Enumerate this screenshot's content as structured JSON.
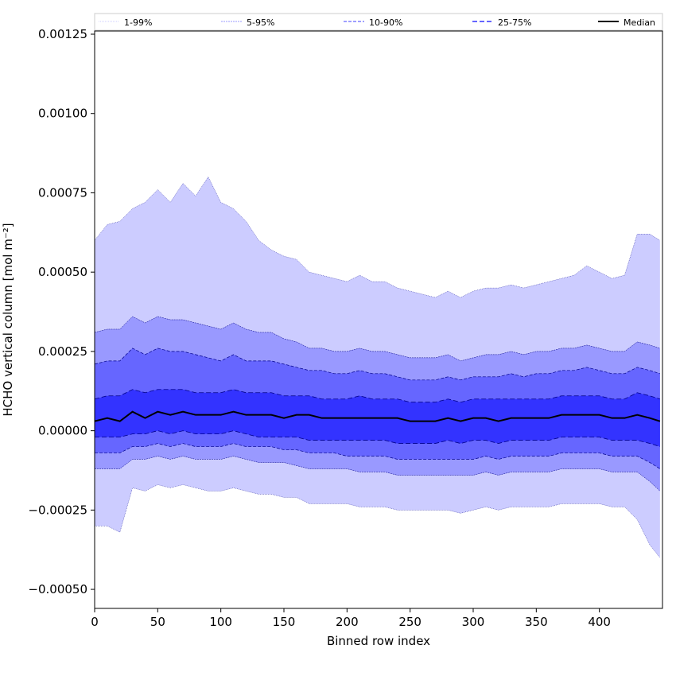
{
  "chart_data": {
    "type": "area",
    "title": "",
    "xlabel": "Binned row index",
    "ylabel": "HCHO vertical column [mol m⁻²]",
    "xlim": [
      0,
      450
    ],
    "ylim": [
      -0.00056,
      0.00126
    ],
    "x_ticks": [
      0,
      50,
      100,
      150,
      200,
      250,
      300,
      350,
      400
    ],
    "x_tick_labels": [
      "0",
      "50",
      "100",
      "150",
      "200",
      "250",
      "300",
      "350",
      "400"
    ],
    "y_ticks": [
      -0.0005,
      -0.00025,
      0,
      0.00025,
      0.0005,
      0.00075,
      0.001,
      0.00125
    ],
    "y_tick_labels": [
      "−0.00050",
      "−0.00025",
      "0.00000",
      "0.00025",
      "0.00050",
      "0.00075",
      "0.00100",
      "0.00125"
    ],
    "grid": false,
    "legend_position": "top",
    "legend": [
      "1-99%",
      "5-95%",
      "10-90%",
      "25-75%",
      "Median"
    ],
    "colors": {
      "band_1_99": "#ccccff",
      "band_5_95": "#9999ff",
      "band_10_90": "#6666ff",
      "band_25_75": "#3333ff",
      "edge": "#00008b",
      "median": "#000000"
    },
    "x": [
      0,
      10,
      20,
      30,
      40,
      50,
      60,
      70,
      80,
      90,
      100,
      110,
      120,
      130,
      140,
      150,
      160,
      170,
      180,
      190,
      200,
      210,
      220,
      230,
      240,
      250,
      260,
      270,
      280,
      290,
      300,
      310,
      320,
      330,
      340,
      350,
      360,
      370,
      380,
      390,
      400,
      410,
      420,
      430,
      440,
      448
    ],
    "series": [
      {
        "name": "Median",
        "values": [
          3e-05,
          4e-05,
          3e-05,
          6e-05,
          4e-05,
          6e-05,
          5e-05,
          6e-05,
          5e-05,
          5e-05,
          5e-05,
          6e-05,
          5e-05,
          5e-05,
          5e-05,
          4e-05,
          5e-05,
          5e-05,
          4e-05,
          4e-05,
          4e-05,
          4e-05,
          4e-05,
          4e-05,
          4e-05,
          3e-05,
          3e-05,
          3e-05,
          4e-05,
          3e-05,
          4e-05,
          4e-05,
          3e-05,
          4e-05,
          4e-05,
          4e-05,
          4e-05,
          5e-05,
          5e-05,
          5e-05,
          5e-05,
          4e-05,
          4e-05,
          5e-05,
          4e-05,
          3e-05
        ]
      },
      {
        "name": "25-75%",
        "values": [
          [
            -2e-05,
            0.0001
          ],
          [
            -2e-05,
            0.00011
          ],
          [
            -2e-05,
            0.00011
          ],
          [
            -1e-05,
            0.00013
          ],
          [
            -1e-05,
            0.00012
          ],
          [
            0.0,
            0.00013
          ],
          [
            -1e-05,
            0.00013
          ],
          [
            0.0,
            0.00013
          ],
          [
            -1e-05,
            0.00012
          ],
          [
            -1e-05,
            0.00012
          ],
          [
            -1e-05,
            0.00012
          ],
          [
            0.0,
            0.00013
          ],
          [
            -1e-05,
            0.00012
          ],
          [
            -2e-05,
            0.00012
          ],
          [
            -2e-05,
            0.00012
          ],
          [
            -2e-05,
            0.00011
          ],
          [
            -2e-05,
            0.00011
          ],
          [
            -3e-05,
            0.00011
          ],
          [
            -3e-05,
            0.0001
          ],
          [
            -3e-05,
            0.0001
          ],
          [
            -3e-05,
            0.0001
          ],
          [
            -3e-05,
            0.00011
          ],
          [
            -3e-05,
            0.0001
          ],
          [
            -3e-05,
            0.0001
          ],
          [
            -4e-05,
            0.0001
          ],
          [
            -4e-05,
            9e-05
          ],
          [
            -4e-05,
            9e-05
          ],
          [
            -4e-05,
            9e-05
          ],
          [
            -3e-05,
            0.0001
          ],
          [
            -4e-05,
            9e-05
          ],
          [
            -3e-05,
            0.0001
          ],
          [
            -3e-05,
            0.0001
          ],
          [
            -4e-05,
            0.0001
          ],
          [
            -3e-05,
            0.0001
          ],
          [
            -3e-05,
            0.0001
          ],
          [
            -3e-05,
            0.0001
          ],
          [
            -3e-05,
            0.0001
          ],
          [
            -2e-05,
            0.00011
          ],
          [
            -2e-05,
            0.00011
          ],
          [
            -2e-05,
            0.00011
          ],
          [
            -2e-05,
            0.00011
          ],
          [
            -3e-05,
            0.0001
          ],
          [
            -3e-05,
            0.0001
          ],
          [
            -3e-05,
            0.00012
          ],
          [
            -4e-05,
            0.00011
          ],
          [
            -5e-05,
            0.0001
          ]
        ]
      },
      {
        "name": "10-90%",
        "values": [
          [
            -7e-05,
            0.00021
          ],
          [
            -7e-05,
            0.00022
          ],
          [
            -7e-05,
            0.00022
          ],
          [
            -5e-05,
            0.00026
          ],
          [
            -5e-05,
            0.00024
          ],
          [
            -4e-05,
            0.00026
          ],
          [
            -5e-05,
            0.00025
          ],
          [
            -4e-05,
            0.00025
          ],
          [
            -5e-05,
            0.00024
          ],
          [
            -5e-05,
            0.00023
          ],
          [
            -5e-05,
            0.00022
          ],
          [
            -4e-05,
            0.00024
          ],
          [
            -5e-05,
            0.00022
          ],
          [
            -5e-05,
            0.00022
          ],
          [
            -5e-05,
            0.00022
          ],
          [
            -6e-05,
            0.00021
          ],
          [
            -6e-05,
            0.0002
          ],
          [
            -7e-05,
            0.00019
          ],
          [
            -7e-05,
            0.00019
          ],
          [
            -7e-05,
            0.00018
          ],
          [
            -8e-05,
            0.00018
          ],
          [
            -8e-05,
            0.00019
          ],
          [
            -8e-05,
            0.00018
          ],
          [
            -8e-05,
            0.00018
          ],
          [
            -9e-05,
            0.00017
          ],
          [
            -9e-05,
            0.00016
          ],
          [
            -9e-05,
            0.00016
          ],
          [
            -9e-05,
            0.00016
          ],
          [
            -9e-05,
            0.00017
          ],
          [
            -9e-05,
            0.00016
          ],
          [
            -9e-05,
            0.00017
          ],
          [
            -8e-05,
            0.00017
          ],
          [
            -9e-05,
            0.00017
          ],
          [
            -8e-05,
            0.00018
          ],
          [
            -8e-05,
            0.00017
          ],
          [
            -8e-05,
            0.00018
          ],
          [
            -8e-05,
            0.00018
          ],
          [
            -7e-05,
            0.00019
          ],
          [
            -7e-05,
            0.00019
          ],
          [
            -7e-05,
            0.0002
          ],
          [
            -7e-05,
            0.00019
          ],
          [
            -8e-05,
            0.00018
          ],
          [
            -8e-05,
            0.00018
          ],
          [
            -8e-05,
            0.0002
          ],
          [
            -0.0001,
            0.00019
          ],
          [
            -0.00012,
            0.00018
          ]
        ]
      },
      {
        "name": "5-95%",
        "values": [
          [
            -0.00012,
            0.00031
          ],
          [
            -0.00012,
            0.00032
          ],
          [
            -0.00012,
            0.00032
          ],
          [
            -9e-05,
            0.00036
          ],
          [
            -9e-05,
            0.00034
          ],
          [
            -8e-05,
            0.00036
          ],
          [
            -9e-05,
            0.00035
          ],
          [
            -8e-05,
            0.00035
          ],
          [
            -9e-05,
            0.00034
          ],
          [
            -9e-05,
            0.00033
          ],
          [
            -9e-05,
            0.00032
          ],
          [
            -8e-05,
            0.00034
          ],
          [
            -9e-05,
            0.00032
          ],
          [
            -0.0001,
            0.00031
          ],
          [
            -0.0001,
            0.00031
          ],
          [
            -0.0001,
            0.00029
          ],
          [
            -0.00011,
            0.00028
          ],
          [
            -0.00012,
            0.00026
          ],
          [
            -0.00012,
            0.00026
          ],
          [
            -0.00012,
            0.00025
          ],
          [
            -0.00012,
            0.00025
          ],
          [
            -0.00013,
            0.00026
          ],
          [
            -0.00013,
            0.00025
          ],
          [
            -0.00013,
            0.00025
          ],
          [
            -0.00014,
            0.00024
          ],
          [
            -0.00014,
            0.00023
          ],
          [
            -0.00014,
            0.00023
          ],
          [
            -0.00014,
            0.00023
          ],
          [
            -0.00014,
            0.00024
          ],
          [
            -0.00014,
            0.00022
          ],
          [
            -0.00014,
            0.00023
          ],
          [
            -0.00013,
            0.00024
          ],
          [
            -0.00014,
            0.00024
          ],
          [
            -0.00013,
            0.00025
          ],
          [
            -0.00013,
            0.00024
          ],
          [
            -0.00013,
            0.00025
          ],
          [
            -0.00013,
            0.00025
          ],
          [
            -0.00012,
            0.00026
          ],
          [
            -0.00012,
            0.00026
          ],
          [
            -0.00012,
            0.00027
          ],
          [
            -0.00012,
            0.00026
          ],
          [
            -0.00013,
            0.00025
          ],
          [
            -0.00013,
            0.00025
          ],
          [
            -0.00013,
            0.00028
          ],
          [
            -0.00016,
            0.00027
          ],
          [
            -0.00019,
            0.00026
          ]
        ]
      },
      {
        "name": "1-99%",
        "values": [
          [
            -0.0003,
            0.0006
          ],
          [
            -0.0003,
            0.00065
          ],
          [
            -0.00032,
            0.00066
          ],
          [
            -0.00018,
            0.0007
          ],
          [
            -0.00019,
            0.00072
          ],
          [
            -0.00017,
            0.00076
          ],
          [
            -0.00018,
            0.00072
          ],
          [
            -0.00017,
            0.00078
          ],
          [
            -0.00018,
            0.00074
          ],
          [
            -0.00019,
            0.0008
          ],
          [
            -0.00019,
            0.00072
          ],
          [
            -0.00018,
            0.0007
          ],
          [
            -0.00019,
            0.00066
          ],
          [
            -0.0002,
            0.0006
          ],
          [
            -0.0002,
            0.00057
          ],
          [
            -0.00021,
            0.00055
          ],
          [
            -0.00021,
            0.00054
          ],
          [
            -0.00023,
            0.0005
          ],
          [
            -0.00023,
            0.00049
          ],
          [
            -0.00023,
            0.00048
          ],
          [
            -0.00023,
            0.00047
          ],
          [
            -0.00024,
            0.00049
          ],
          [
            -0.00024,
            0.00047
          ],
          [
            -0.00024,
            0.00047
          ],
          [
            -0.00025,
            0.00045
          ],
          [
            -0.00025,
            0.00044
          ],
          [
            -0.00025,
            0.00043
          ],
          [
            -0.00025,
            0.00042
          ],
          [
            -0.00025,
            0.00044
          ],
          [
            -0.00026,
            0.00042
          ],
          [
            -0.00025,
            0.00044
          ],
          [
            -0.00024,
            0.00045
          ],
          [
            -0.00025,
            0.00045
          ],
          [
            -0.00024,
            0.00046
          ],
          [
            -0.00024,
            0.00045
          ],
          [
            -0.00024,
            0.00046
          ],
          [
            -0.00024,
            0.00047
          ],
          [
            -0.00023,
            0.00048
          ],
          [
            -0.00023,
            0.00049
          ],
          [
            -0.00023,
            0.00052
          ],
          [
            -0.00023,
            0.0005
          ],
          [
            -0.00024,
            0.00048
          ],
          [
            -0.00024,
            0.00049
          ],
          [
            -0.00028,
            0.00062
          ],
          [
            -0.00036,
            0.00062
          ],
          [
            -0.0004,
            0.0006
          ]
        ]
      }
    ]
  }
}
